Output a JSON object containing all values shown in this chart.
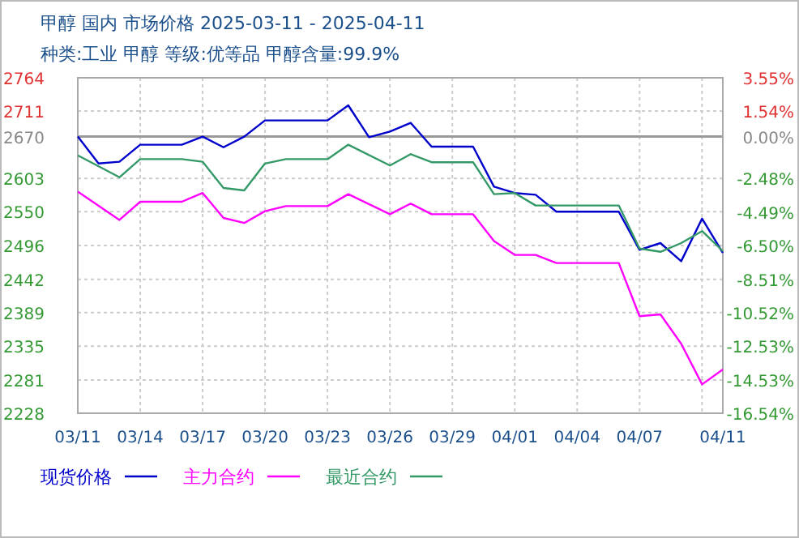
{
  "chart_data": {
    "type": "line",
    "title": "甲醇 国内 市场价格 2025-03-11 - 2025-04-11",
    "subtitle": "种类:工业 甲醇 等级:优等品 甲醇含量:99.9%",
    "xlim": [
      "2025-03-11",
      "2025-04-11"
    ],
    "xticks": [
      {
        "value": "2025-03-11",
        "label": "03/11"
      },
      {
        "value": "2025-03-14",
        "label": "03/14"
      },
      {
        "value": "2025-03-17",
        "label": "03/17"
      },
      {
        "value": "2025-03-20",
        "label": "03/20"
      },
      {
        "value": "2025-03-23",
        "label": "03/23"
      },
      {
        "value": "2025-03-26",
        "label": "03/26"
      },
      {
        "value": "2025-03-29",
        "label": "03/29"
      },
      {
        "value": "2025-04-01",
        "label": "04/01"
      },
      {
        "value": "2025-04-04",
        "label": "04/04"
      },
      {
        "value": "2025-04-07",
        "label": "04/07"
      },
      {
        "value": "2025-04-10",
        "label": null
      },
      {
        "value": "2025-04-11",
        "label": "04/11"
      }
    ],
    "ylim": [
      2228,
      2764
    ],
    "yticks": [
      2228,
      2281,
      2335,
      2389,
      2442,
      2496,
      2550,
      2603,
      2670,
      2711,
      2764
    ],
    "y2lim": [
      -16.54,
      3.55
    ],
    "y2ticks": [
      {
        "value": -16.54,
        "label": "-16.54%"
      },
      {
        "value": -14.53,
        "label": "-14.53%"
      },
      {
        "value": -12.53,
        "label": "-12.53%"
      },
      {
        "value": -10.52,
        "label": "-10.52%"
      },
      {
        "value": -8.51,
        "label": "-8.51%"
      },
      {
        "value": -6.5,
        "label": "-6.50%"
      },
      {
        "value": -4.49,
        "label": "-4.49%"
      },
      {
        "value": -2.48,
        "label": "-2.48%"
      },
      {
        "value": 0,
        "label": "0.00%"
      },
      {
        "value": 1.54,
        "label": "1.54%"
      },
      {
        "value": 3.55,
        "label": "3.55%"
      }
    ],
    "ref_lines": [
      {
        "axis": "y",
        "value": 2670,
        "color": "#999999"
      }
    ],
    "grid": true,
    "legend": "bottom",
    "series": [
      {
        "name": "现货价格",
        "color": "#0000cc",
        "x": [
          "2025-03-11",
          "2025-03-12",
          "2025-03-13",
          "2025-03-14",
          "2025-03-16",
          "2025-03-17",
          "2025-03-18",
          "2025-03-19",
          "2025-03-20",
          "2025-03-23",
          "2025-03-24",
          "2025-03-25",
          "2025-03-26",
          "2025-03-27",
          "2025-03-28",
          "2025-03-30",
          "2025-03-31",
          "2025-04-01",
          "2025-04-02",
          "2025-04-03",
          "2025-04-06",
          "2025-04-07",
          "2025-04-08",
          "2025-04-09",
          "2025-04-10",
          "2025-04-11"
        ],
        "values": [
          2670,
          2627,
          2630,
          2657,
          2657,
          2670,
          2653,
          2670,
          2696,
          2696,
          2720,
          2669,
          2678,
          2692,
          2654,
          2654,
          2590,
          2580,
          2577,
          2550,
          2550,
          2489,
          2500,
          2471,
          2539,
          2484
        ]
      },
      {
        "name": "主力合约",
        "color": "#ff00ff",
        "x": [
          "2025-03-11",
          "2025-03-13",
          "2025-03-14",
          "2025-03-16",
          "2025-03-17",
          "2025-03-18",
          "2025-03-19",
          "2025-03-20",
          "2025-03-21",
          "2025-03-23",
          "2025-03-24",
          "2025-03-26",
          "2025-03-27",
          "2025-03-28",
          "2025-03-30",
          "2025-03-31",
          "2025-04-01",
          "2025-04-02",
          "2025-04-03",
          "2025-04-06",
          "2025-04-07",
          "2025-04-08",
          "2025-04-09",
          "2025-04-10",
          "2025-04-11"
        ],
        "values": [
          2582,
          2537,
          2566,
          2566,
          2580,
          2540,
          2532,
          2551,
          2559,
          2559,
          2578,
          2546,
          2563,
          2546,
          2546,
          2503,
          2481,
          2481,
          2468,
          2468,
          2383,
          2386,
          2339,
          2274,
          2298
        ]
      },
      {
        "name": "最近合约",
        "color": "#339966",
        "x": [
          "2025-03-11",
          "2025-03-13",
          "2025-03-14",
          "2025-03-16",
          "2025-03-17",
          "2025-03-18",
          "2025-03-19",
          "2025-03-20",
          "2025-03-21",
          "2025-03-23",
          "2025-03-24",
          "2025-03-26",
          "2025-03-27",
          "2025-03-28",
          "2025-03-30",
          "2025-03-31",
          "2025-04-01",
          "2025-04-02",
          "2025-04-03",
          "2025-04-06",
          "2025-04-07",
          "2025-04-08",
          "2025-04-09",
          "2025-04-10",
          "2025-04-11"
        ],
        "values": [
          2640,
          2605,
          2634,
          2634,
          2630,
          2588,
          2584,
          2627,
          2634,
          2634,
          2657,
          2624,
          2642,
          2629,
          2629,
          2578,
          2580,
          2560,
          2560,
          2560,
          2491,
          2486,
          2500,
          2519,
          2487
        ]
      }
    ]
  }
}
